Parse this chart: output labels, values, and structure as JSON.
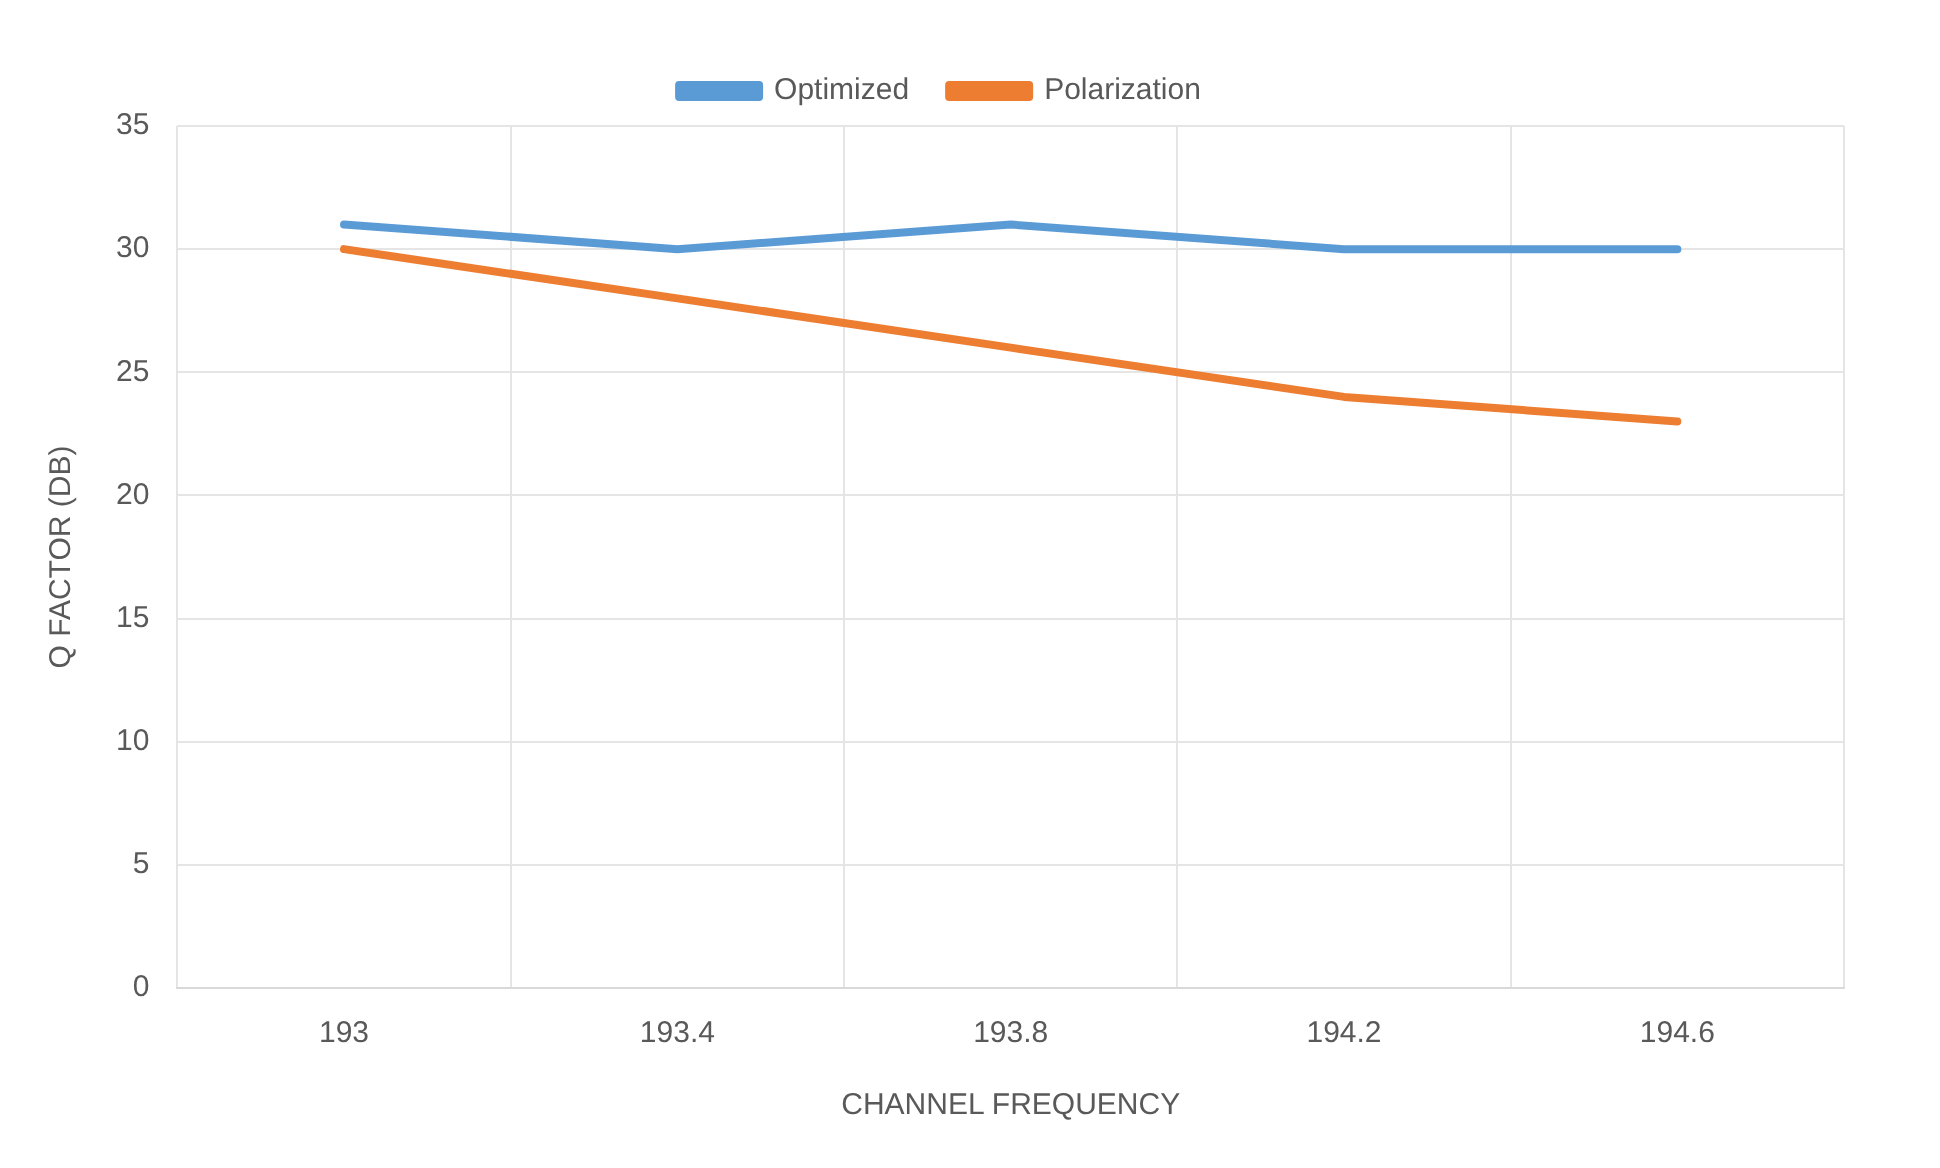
{
  "chart_data": {
    "type": "line",
    "xlabel": "CHANNEL FREQUENCY",
    "ylabel": "Q FACTOR (DB)",
    "categories": [
      "193",
      "193.4",
      "193.8",
      "194.2",
      "194.6"
    ],
    "series": [
      {
        "name": "Optimized",
        "color": "#5b9bd5",
        "values": [
          31,
          30,
          31,
          30,
          30
        ]
      },
      {
        "name": "Polarization",
        "color": "#ed7d31",
        "values": [
          30,
          28,
          26,
          24,
          23
        ]
      }
    ],
    "ylim": [
      0,
      35
    ],
    "yticks": [
      0,
      5,
      10,
      15,
      20,
      25,
      30,
      35
    ],
    "grid": true,
    "legend": "top",
    "marker": "none",
    "line_style": "solid"
  }
}
